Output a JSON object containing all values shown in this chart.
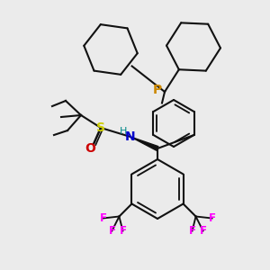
{
  "background_color": "#ebebeb",
  "atom_colors": {
    "P": "#cc8800",
    "N": "#0000cc",
    "S": "#cccc00",
    "O": "#cc0000",
    "H": "#008888",
    "F": "#ff00ff",
    "C": "#111111"
  },
  "line_color": "#111111",
  "line_width": 1.5,
  "figsize": [
    3.0,
    3.0
  ],
  "dpi": 100
}
